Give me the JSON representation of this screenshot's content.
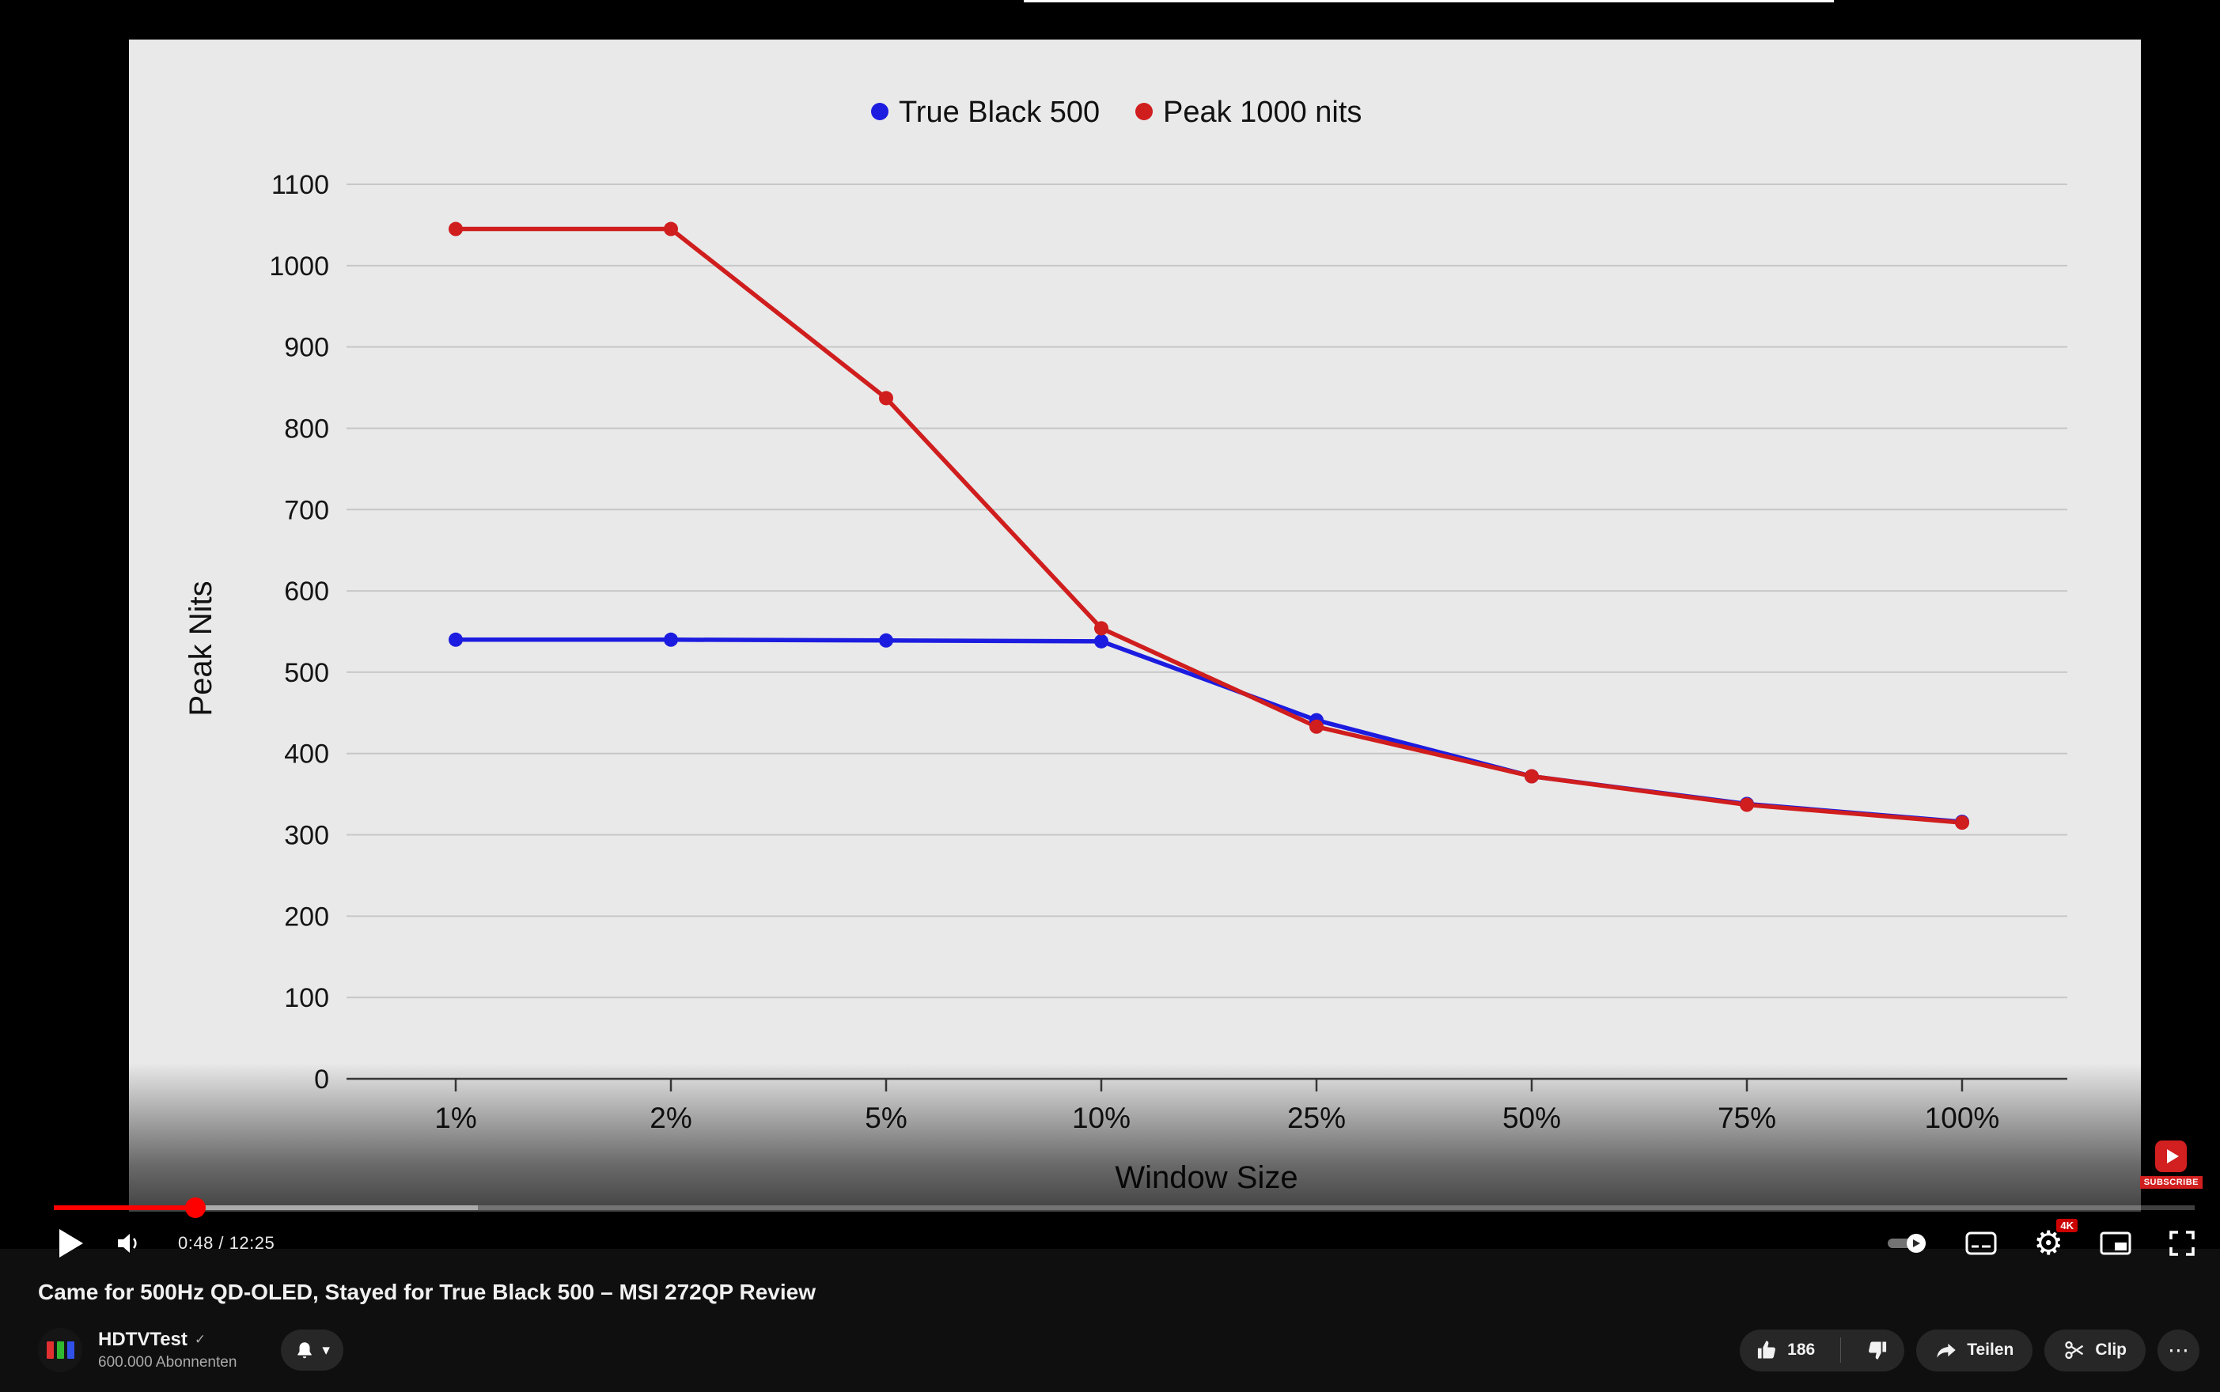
{
  "player": {
    "time_display": "0:48 / 12:25",
    "watermark_label": "SUBSCRIBE",
    "quality_badge": "4K",
    "progress_percent": 6.6,
    "buffered_percent": 19.8
  },
  "chart_data": {
    "type": "line",
    "title": "",
    "xlabel": "Window Size",
    "ylabel": "Peak Nits",
    "categories": [
      "1%",
      "2%",
      "5%",
      "10%",
      "25%",
      "50%",
      "75%",
      "100%"
    ],
    "ylim": [
      0,
      1100
    ],
    "ytick_step": 100,
    "grid": true,
    "legend_position": "top-center",
    "background": "#e9e9e9",
    "series": [
      {
        "name": "True Black 500",
        "color": "#1c1ce0",
        "values": [
          540,
          540,
          539,
          538,
          441,
          372,
          338,
          316
        ]
      },
      {
        "name": "Peak 1000 nits",
        "color": "#d01d1d",
        "values": [
          1045,
          1045,
          837,
          554,
          433,
          372,
          337,
          315
        ]
      }
    ]
  },
  "video_info": {
    "title": "Came for 500Hz QD-OLED, Stayed for True Black 500 – MSI 272QP Review",
    "channel": {
      "name": "HDTVTest",
      "verified_icon": "✓",
      "subscribers": "600.000 Abonnenten"
    },
    "actions": {
      "like_count": "186",
      "share_label": "Teilen",
      "clip_label": "Clip",
      "more_glyph": "⋯"
    }
  },
  "icons": {
    "gear_glyph": "⚙",
    "chevron_down_glyph": "▾"
  }
}
